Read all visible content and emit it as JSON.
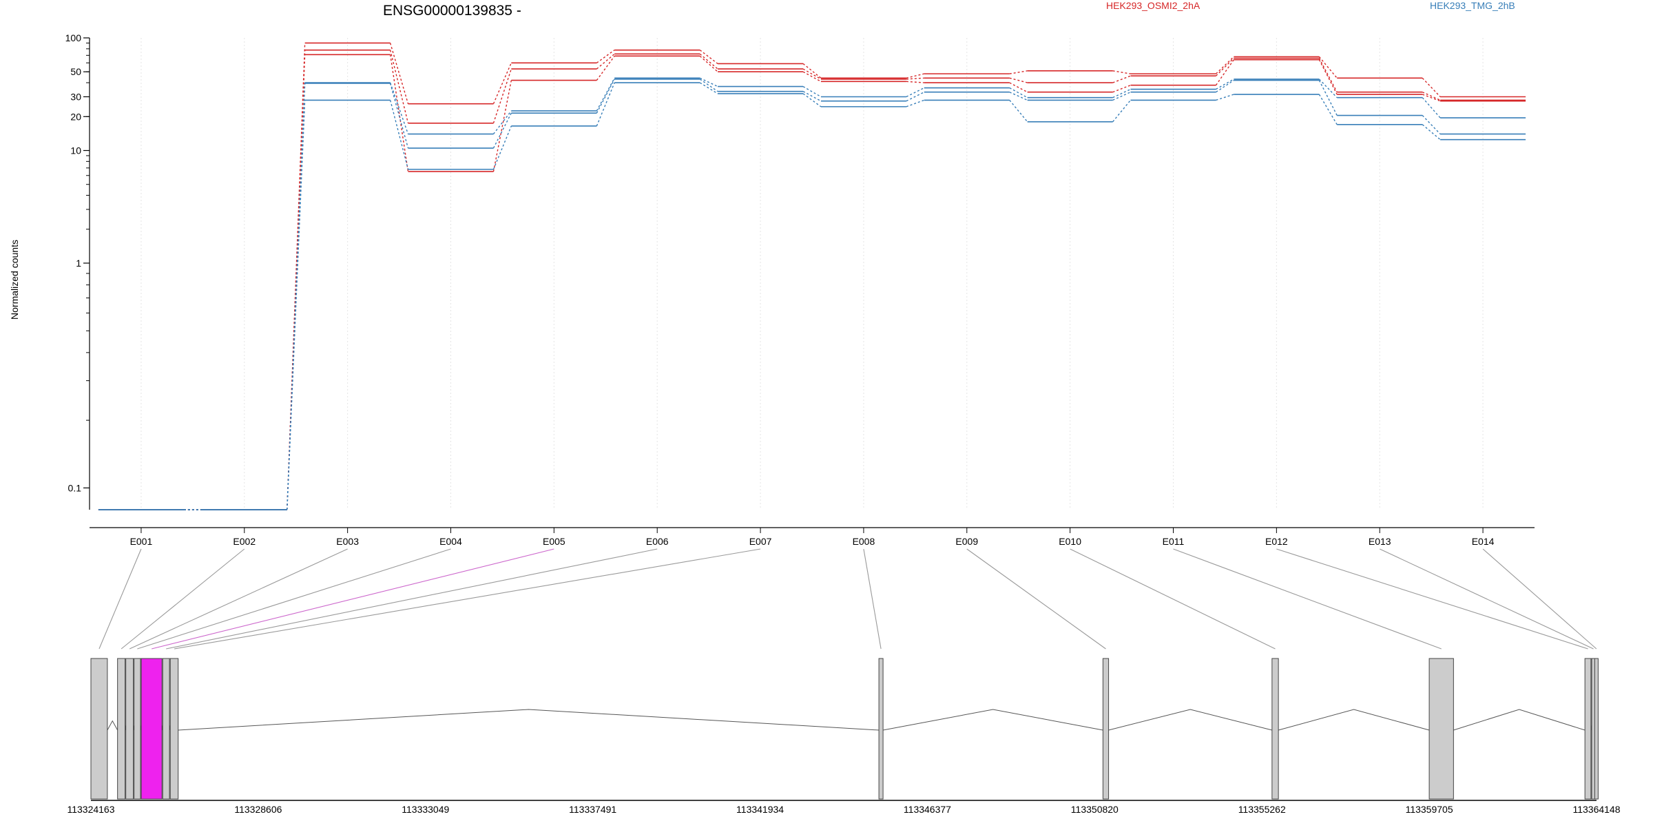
{
  "chart_data": {
    "type": "line",
    "title": "ENSG00000139835 -",
    "ylabel": "Normalized counts",
    "xlabel": "",
    "y_scale": "log",
    "ylim": [
      0.08,
      100
    ],
    "y_ticks": [
      0.1,
      1,
      10,
      20,
      30,
      50,
      100
    ],
    "y_tick_labels": [
      "0.1",
      "1",
      "10",
      "20",
      "30",
      "50",
      "100"
    ],
    "grid": "vertical dotted at exon positions",
    "legend_position": "top-right",
    "categories": [
      "E001",
      "E002",
      "E003",
      "E004",
      "E005",
      "E006",
      "E007",
      "E008",
      "E009",
      "E010",
      "E011",
      "E012",
      "E013",
      "E014"
    ],
    "series": [
      {
        "group": "HEK293_OSMI2_2hA",
        "color": "#d62728",
        "values": [
          0.08,
          0.08,
          90,
          26,
          60,
          78,
          59,
          44,
          48,
          51,
          48,
          68,
          44,
          30
        ]
      },
      {
        "group": "HEK293_OSMI2_2hA",
        "color": "#d62728",
        "values": [
          0.08,
          0.08,
          78,
          17.5,
          53,
          72,
          53,
          43,
          44,
          40,
          46,
          66,
          33,
          28
        ]
      },
      {
        "group": "HEK293_OSMI2_2hA",
        "color": "#d62728",
        "values": [
          0.08,
          0.08,
          71,
          6.5,
          42,
          69,
          50,
          41,
          40,
          33,
          38,
          64,
          31.5,
          27.5
        ]
      },
      {
        "group": "HEK293_TMG_2hB",
        "color": "#377eb8",
        "values": [
          0.08,
          0.08,
          40,
          14,
          22.5,
          44,
          37,
          30,
          36,
          29.5,
          35,
          43,
          29.5,
          19.5
        ]
      },
      {
        "group": "HEK293_TMG_2hB",
        "color": "#377eb8",
        "values": [
          0.08,
          0.08,
          39.5,
          10.5,
          21.5,
          43,
          33.5,
          27.5,
          33,
          28,
          33,
          42,
          20.5,
          14
        ]
      },
      {
        "group": "HEK293_TMG_2hB",
        "color": "#377eb8",
        "values": [
          0.08,
          0.08,
          28,
          6.8,
          16.5,
          40,
          32,
          24.5,
          28,
          18,
          28,
          31.5,
          17,
          12.5
        ]
      }
    ],
    "legend": [
      {
        "label": "HEK293_OSMI2_2hA",
        "color": "#d62728"
      },
      {
        "label": "HEK293_TMG_2hB",
        "color": "#377eb8"
      }
    ],
    "gene_model": {
      "coordinate_labels": [
        "113324163",
        "113328606",
        "113333049",
        "113337491",
        "113341934",
        "113346377",
        "113350820",
        "113355262",
        "113359705",
        "113364148"
      ],
      "coordinate_range": [
        113324163,
        113364148
      ],
      "highlight_color": "#ee22ee",
      "exon_fill": "#cccccc",
      "highlighted_exon": "E005",
      "exons": [
        {
          "id": "E001",
          "start": 113324163,
          "end": 113324600
        },
        {
          "id": "E002",
          "start": 113324870,
          "end": 113325070
        },
        {
          "id": "E003",
          "start": 113325090,
          "end": 113325290
        },
        {
          "id": "E004",
          "start": 113325310,
          "end": 113325480
        },
        {
          "id": "E005",
          "start": 113325500,
          "end": 113326050
        },
        {
          "id": "E006",
          "start": 113326070,
          "end": 113326250
        },
        {
          "id": "E007",
          "start": 113326270,
          "end": 113326480
        },
        {
          "id": "E008",
          "start": 113345090,
          "end": 113345200
        },
        {
          "id": "E009",
          "start": 113351040,
          "end": 113351190
        },
        {
          "id": "E010",
          "start": 113355530,
          "end": 113355700
        },
        {
          "id": "E011",
          "start": 113359705,
          "end": 113360350
        },
        {
          "id": "E012",
          "start": 113363840,
          "end": 113364000
        },
        {
          "id": "E013",
          "start": 113364020,
          "end": 113364090
        },
        {
          "id": "E014",
          "start": 113364100,
          "end": 113364148
        }
      ]
    }
  }
}
